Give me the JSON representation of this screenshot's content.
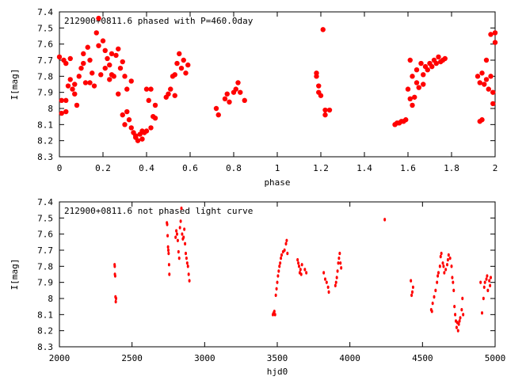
{
  "colors": {
    "marker": "#ff0000",
    "axis": "#000000",
    "background": "#ffffff"
  },
  "chart_data": [
    {
      "type": "scatter",
      "title": "212900+0811.6 phased with P=460.0day",
      "xlabel": "phase",
      "ylabel": "I[mag]",
      "xlim": [
        0,
        2
      ],
      "ylim": [
        7.4,
        8.3
      ],
      "y_inverted": true,
      "grid": false,
      "xticks": [
        0,
        0.2,
        0.4,
        0.6,
        0.8,
        1,
        1.2,
        1.4,
        1.6,
        1.8,
        2
      ],
      "xtick_labels": [
        "0",
        "0.2",
        "0.4",
        "0.6",
        "0.8",
        "1",
        "1.2",
        "1.4",
        "1.6",
        "1.8",
        "2"
      ],
      "yticks": [
        7.4,
        7.5,
        7.6,
        7.7,
        7.8,
        7.9,
        8,
        8.1,
        8.2,
        8.3
      ],
      "ytick_labels": [
        "7.4",
        "7.5",
        "7.6",
        "7.7",
        "7.8",
        "7.9",
        "8",
        "8.1",
        "8.2",
        "8.3"
      ],
      "marker": "filled-circle-large",
      "points": [
        [
          0.0,
          7.68
        ],
        [
          0.01,
          7.95
        ],
        [
          0.01,
          8.03
        ],
        [
          0.02,
          7.7
        ],
        [
          0.03,
          7.72
        ],
        [
          0.03,
          7.95
        ],
        [
          0.03,
          8.02
        ],
        [
          0.04,
          7.86
        ],
        [
          0.05,
          7.69
        ],
        [
          0.05,
          7.82
        ],
        [
          0.06,
          7.88
        ],
        [
          0.07,
          7.91
        ],
        [
          0.07,
          7.85
        ],
        [
          0.08,
          7.98
        ],
        [
          0.09,
          7.8
        ],
        [
          0.1,
          7.75
        ],
        [
          0.11,
          7.72
        ],
        [
          0.11,
          7.66
        ],
        [
          0.12,
          7.84
        ],
        [
          0.13,
          7.62
        ],
        [
          0.14,
          7.7
        ],
        [
          0.14,
          7.84
        ],
        [
          0.15,
          7.78
        ],
        [
          0.16,
          7.86
        ],
        [
          0.17,
          7.53
        ],
        [
          0.18,
          7.61
        ],
        [
          0.18,
          7.44
        ],
        [
          0.19,
          7.79
        ],
        [
          0.2,
          7.58
        ],
        [
          0.21,
          7.64
        ],
        [
          0.21,
          7.75
        ],
        [
          0.22,
          7.69
        ],
        [
          0.23,
          7.73
        ],
        [
          0.23,
          7.82
        ],
        [
          0.24,
          7.79
        ],
        [
          0.24,
          7.66
        ],
        [
          0.25,
          7.8
        ],
        [
          0.26,
          7.67
        ],
        [
          0.27,
          7.63
        ],
        [
          0.27,
          7.91
        ],
        [
          0.28,
          7.75
        ],
        [
          0.29,
          7.71
        ],
        [
          0.29,
          8.04
        ],
        [
          0.3,
          7.8
        ],
        [
          0.3,
          8.1
        ],
        [
          0.31,
          7.88
        ],
        [
          0.31,
          8.02
        ],
        [
          0.32,
          8.07
        ],
        [
          0.33,
          8.12
        ],
        [
          0.33,
          7.83
        ],
        [
          0.34,
          8.15
        ],
        [
          0.35,
          8.17
        ],
        [
          0.35,
          8.18
        ],
        [
          0.36,
          8.2
        ],
        [
          0.37,
          8.16
        ],
        [
          0.38,
          8.14
        ],
        [
          0.38,
          8.19
        ],
        [
          0.39,
          8.15
        ],
        [
          0.4,
          8.14
        ],
        [
          0.4,
          7.88
        ],
        [
          0.41,
          7.95
        ],
        [
          0.42,
          8.12
        ],
        [
          0.42,
          7.88
        ],
        [
          0.43,
          8.05
        ],
        [
          0.44,
          8.06
        ],
        [
          0.44,
          7.98
        ],
        [
          0.49,
          7.93
        ],
        [
          0.5,
          7.91
        ],
        [
          0.51,
          7.88
        ],
        [
          0.52,
          7.8
        ],
        [
          0.53,
          7.92
        ],
        [
          0.53,
          7.79
        ],
        [
          0.54,
          7.72
        ],
        [
          0.55,
          7.66
        ],
        [
          0.56,
          7.75
        ],
        [
          0.57,
          7.7
        ],
        [
          0.58,
          7.78
        ],
        [
          0.59,
          7.73
        ],
        [
          0.72,
          8.0
        ],
        [
          0.73,
          8.04
        ],
        [
          0.76,
          7.94
        ],
        [
          0.77,
          7.91
        ],
        [
          0.78,
          7.96
        ],
        [
          0.8,
          7.9
        ],
        [
          0.81,
          7.88
        ],
        [
          0.82,
          7.84
        ],
        [
          0.83,
          7.9
        ],
        [
          0.85,
          7.95
        ],
        [
          1.18,
          7.78
        ],
        [
          1.18,
          7.8
        ],
        [
          1.19,
          7.86
        ],
        [
          1.19,
          7.9
        ],
        [
          1.2,
          7.92
        ],
        [
          1.21,
          7.51
        ],
        [
          1.22,
          8.01
        ],
        [
          1.22,
          8.04
        ],
        [
          1.24,
          8.01
        ],
        [
          1.54,
          8.1
        ],
        [
          1.55,
          8.09
        ],
        [
          1.56,
          8.09
        ],
        [
          1.57,
          8.08
        ],
        [
          1.58,
          8.08
        ],
        [
          1.59,
          8.07
        ],
        [
          1.6,
          7.88
        ],
        [
          1.61,
          7.94
        ],
        [
          1.61,
          7.7
        ],
        [
          1.62,
          7.98
        ],
        [
          1.62,
          7.8
        ],
        [
          1.63,
          7.93
        ],
        [
          1.64,
          7.84
        ],
        [
          1.64,
          7.76
        ],
        [
          1.65,
          7.87
        ],
        [
          1.66,
          7.72
        ],
        [
          1.67,
          7.85
        ],
        [
          1.67,
          7.79
        ],
        [
          1.68,
          7.74
        ],
        [
          1.69,
          7.76
        ],
        [
          1.7,
          7.72
        ],
        [
          1.71,
          7.74
        ],
        [
          1.72,
          7.7
        ],
        [
          1.73,
          7.72
        ],
        [
          1.74,
          7.68
        ],
        [
          1.75,
          7.71
        ],
        [
          1.76,
          7.7
        ],
        [
          1.77,
          7.69
        ],
        [
          1.92,
          7.8
        ],
        [
          1.93,
          7.84
        ],
        [
          1.93,
          8.08
        ],
        [
          1.94,
          7.78
        ],
        [
          1.94,
          8.07
        ],
        [
          1.95,
          7.85
        ],
        [
          1.96,
          7.82
        ],
        [
          1.96,
          7.7
        ],
        [
          1.97,
          7.88
        ],
        [
          1.98,
          7.54
        ],
        [
          1.98,
          7.8
        ],
        [
          1.99,
          7.97
        ],
        [
          1.99,
          7.9
        ],
        [
          2.0,
          7.53
        ],
        [
          2.0,
          7.59
        ]
      ]
    },
    {
      "type": "scatter",
      "title": "212900+0811.6 not phased light curve",
      "xlabel": "hjd0",
      "ylabel": "I[mag]",
      "xlim": [
        2000,
        5000
      ],
      "ylim": [
        7.4,
        8.3
      ],
      "y_inverted": true,
      "grid": false,
      "xticks": [
        2000,
        2500,
        3000,
        3500,
        4000,
        4500,
        5000
      ],
      "xtick_labels": [
        "2000",
        "2500",
        "3000",
        "3500",
        "4000",
        "4500",
        "5000"
      ],
      "yticks": [
        7.4,
        7.5,
        7.6,
        7.7,
        7.8,
        7.9,
        8,
        8.1,
        8.2,
        8.3
      ],
      "ytick_labels": [
        "7.4",
        "7.5",
        "7.6",
        "7.7",
        "7.8",
        "7.9",
        "8",
        "8.1",
        "8.2",
        "8.3"
      ],
      "marker": "filled-circle-small",
      "points": [
        [
          2380,
          7.79
        ],
        [
          2381,
          7.8
        ],
        [
          2382,
          7.85
        ],
        [
          2384,
          7.86
        ],
        [
          2386,
          7.99
        ],
        [
          2388,
          8.02
        ],
        [
          2390,
          8.0
        ],
        [
          2740,
          7.53
        ],
        [
          2742,
          7.54
        ],
        [
          2745,
          7.61
        ],
        [
          2748,
          7.68
        ],
        [
          2750,
          7.7
        ],
        [
          2752,
          7.72
        ],
        [
          2755,
          7.79
        ],
        [
          2757,
          7.85
        ],
        [
          2800,
          7.62
        ],
        [
          2805,
          7.58
        ],
        [
          2810,
          7.6
        ],
        [
          2815,
          7.64
        ],
        [
          2820,
          7.71
        ],
        [
          2825,
          7.75
        ],
        [
          2830,
          7.56
        ],
        [
          2835,
          7.52
        ],
        [
          2840,
          7.44
        ],
        [
          2845,
          7.6
        ],
        [
          2850,
          7.63
        ],
        [
          2855,
          7.62
        ],
        [
          2860,
          7.57
        ],
        [
          2865,
          7.66
        ],
        [
          2870,
          7.72
        ],
        [
          2875,
          7.75
        ],
        [
          2880,
          7.78
        ],
        [
          2885,
          7.8
        ],
        [
          2890,
          7.85
        ],
        [
          2895,
          7.89
        ],
        [
          3470,
          8.1
        ],
        [
          3475,
          8.09
        ],
        [
          3480,
          8.08
        ],
        [
          3485,
          8.1
        ],
        [
          3490,
          7.98
        ],
        [
          3495,
          7.94
        ],
        [
          3500,
          7.9
        ],
        [
          3505,
          7.86
        ],
        [
          3510,
          7.83
        ],
        [
          3515,
          7.8
        ],
        [
          3520,
          7.78
        ],
        [
          3525,
          7.75
        ],
        [
          3530,
          7.73
        ],
        [
          3540,
          7.71
        ],
        [
          3550,
          7.7
        ],
        [
          3560,
          7.66
        ],
        [
          3565,
          7.64
        ],
        [
          3570,
          7.72
        ],
        [
          3640,
          7.76
        ],
        [
          3645,
          7.78
        ],
        [
          3650,
          7.8
        ],
        [
          3655,
          7.84
        ],
        [
          3660,
          7.82
        ],
        [
          3665,
          7.85
        ],
        [
          3670,
          7.79
        ],
        [
          3690,
          7.82
        ],
        [
          3700,
          7.84
        ],
        [
          3820,
          7.84
        ],
        [
          3830,
          7.88
        ],
        [
          3840,
          7.9
        ],
        [
          3850,
          7.93
        ],
        [
          3855,
          7.96
        ],
        [
          3900,
          7.92
        ],
        [
          3905,
          7.9
        ],
        [
          3910,
          7.87
        ],
        [
          3915,
          7.83
        ],
        [
          3920,
          7.78
        ],
        [
          3925,
          7.75
        ],
        [
          3930,
          7.72
        ],
        [
          3935,
          7.78
        ],
        [
          3940,
          7.81
        ],
        [
          4240,
          7.51
        ],
        [
          4420,
          7.89
        ],
        [
          4425,
          7.98
        ],
        [
          4430,
          7.96
        ],
        [
          4435,
          7.93
        ],
        [
          4560,
          8.07
        ],
        [
          4565,
          8.08
        ],
        [
          4570,
          8.03
        ],
        [
          4580,
          7.99
        ],
        [
          4590,
          7.95
        ],
        [
          4600,
          7.9
        ],
        [
          4605,
          7.86
        ],
        [
          4610,
          7.84
        ],
        [
          4620,
          7.8
        ],
        [
          4625,
          7.74
        ],
        [
          4630,
          7.72
        ],
        [
          4640,
          7.78
        ],
        [
          4645,
          7.8
        ],
        [
          4650,
          7.84
        ],
        [
          4660,
          7.82
        ],
        [
          4670,
          7.79
        ],
        [
          4675,
          7.76
        ],
        [
          4680,
          7.73
        ],
        [
          4690,
          7.75
        ],
        [
          4700,
          7.8
        ],
        [
          4705,
          7.87
        ],
        [
          4710,
          7.9
        ],
        [
          4715,
          7.95
        ],
        [
          4720,
          8.05
        ],
        [
          4725,
          8.1
        ],
        [
          4730,
          8.14
        ],
        [
          4735,
          8.18
        ],
        [
          4740,
          8.15
        ],
        [
          4745,
          8.2
        ],
        [
          4750,
          8.16
        ],
        [
          4755,
          8.14
        ],
        [
          4760,
          8.12
        ],
        [
          4770,
          8.07
        ],
        [
          4775,
          8.0
        ],
        [
          4780,
          8.1
        ],
        [
          4900,
          7.9
        ],
        [
          4910,
          8.09
        ],
        [
          4920,
          8.0
        ],
        [
          4925,
          7.93
        ],
        [
          4930,
          7.9
        ],
        [
          4940,
          7.88
        ],
        [
          4945,
          7.86
        ],
        [
          4950,
          7.95
        ],
        [
          4960,
          7.89
        ],
        [
          4965,
          7.92
        ],
        [
          4970,
          7.87
        ]
      ]
    }
  ]
}
